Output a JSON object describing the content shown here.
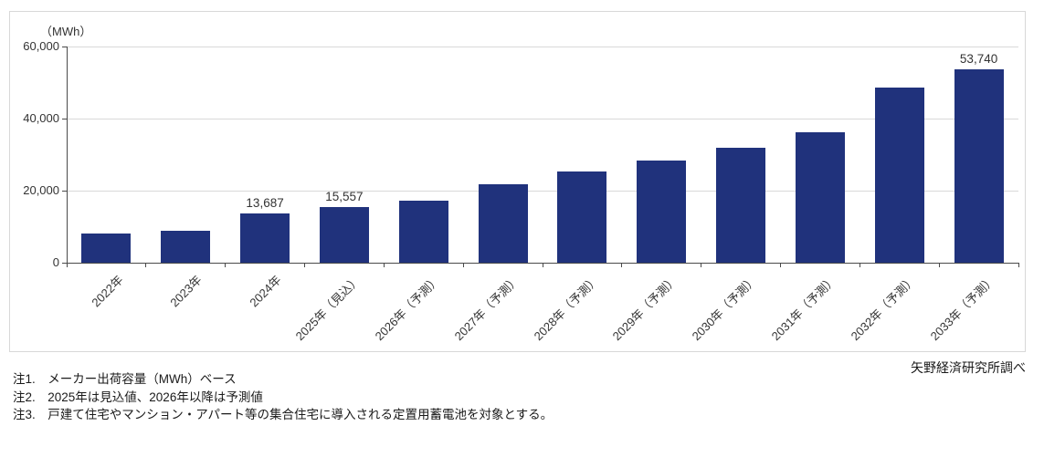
{
  "chart_data": {
    "type": "bar",
    "title": "",
    "unit_label": "（MWh）",
    "categories": [
      "2022年",
      "2023年",
      "2024年",
      "2025年（見込）",
      "2026年（予測）",
      "2027年（予測）",
      "2028年（予測）",
      "2029年（予測）",
      "2030年（予測）",
      "2031年（予測）",
      "2032年（予測）",
      "2033年（予測）"
    ],
    "values": [
      8000,
      8800,
      13687,
      15557,
      17300,
      21700,
      25200,
      28300,
      31800,
      36100,
      48600,
      53740
    ],
    "value_labels": [
      "",
      "",
      "13,687",
      "15,557",
      "",
      "",
      "",
      "",
      "",
      "",
      "",
      "53,740"
    ],
    "xlabel": "",
    "ylabel": "（MWh）",
    "ylim": [
      0,
      60000
    ],
    "yticks": [
      0,
      20000,
      40000,
      60000
    ],
    "ytick_labels": [
      "0",
      "20,000",
      "40,000",
      "60,000"
    ],
    "grid": true,
    "legend_position": "none",
    "bar_color": "#20327c",
    "gridline_color": "#d9d9d9",
    "axis_color": "#4a4a4a"
  },
  "notes": [
    "注1.　メーカー出荷容量（MWh）ベース",
    "注2.　2025年は見込値、2026年以降は予測値",
    "注3.　戸建て住宅やマンション・アパート等の集合住宅に導入される定置用蓄電池を対象とする。"
  ],
  "source": "矢野経済研究所調べ"
}
